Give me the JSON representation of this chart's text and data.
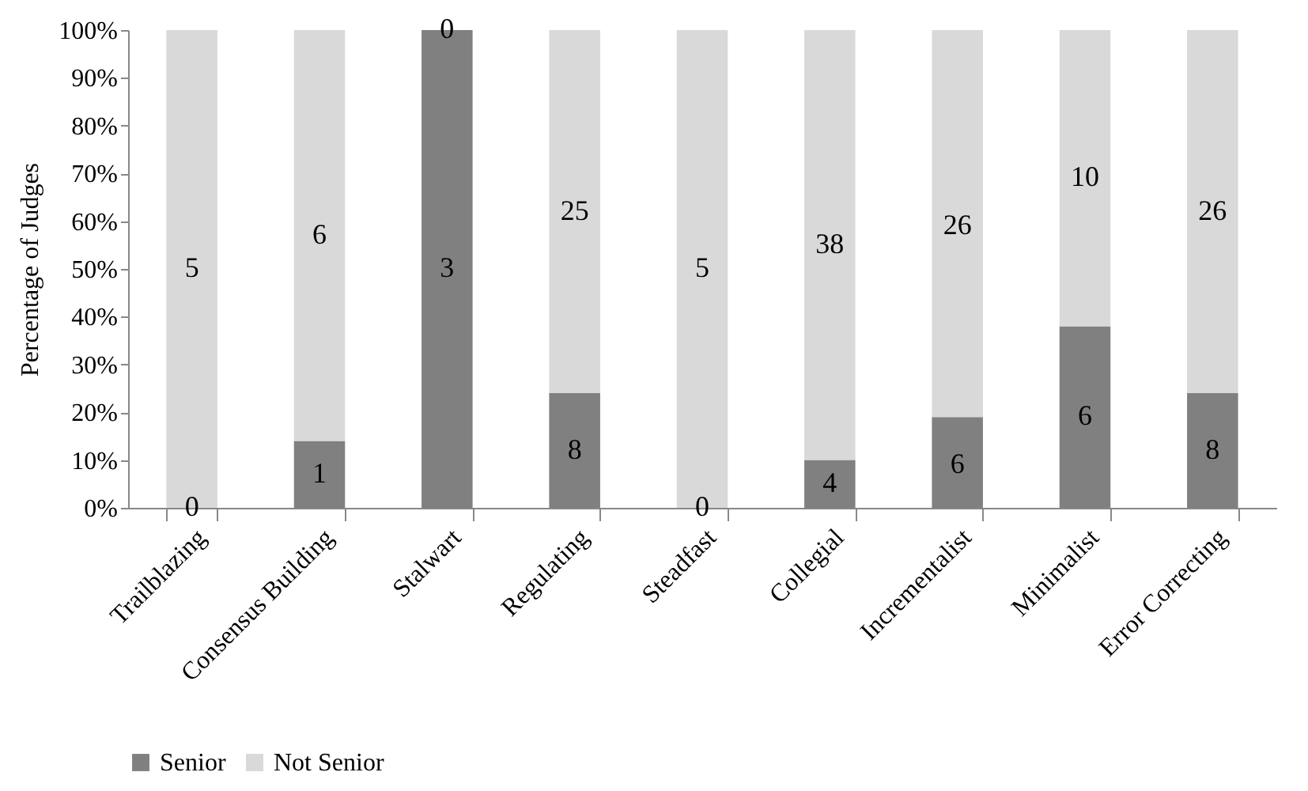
{
  "chart_data": {
    "type": "bar",
    "stacked": true,
    "ylabel": "Percentage of Judges",
    "categories": [
      "Trailblazing",
      "Consensus Building",
      "Stalwart",
      "Regulating",
      "Steadfast",
      "Collegial",
      "Incrementalist",
      "Minimalist",
      "Error Correcting"
    ],
    "series": [
      {
        "name": "Senior",
        "color": "#808080",
        "values": [
          0,
          14,
          100,
          24,
          0,
          10,
          19,
          38,
          24
        ]
      },
      {
        "name": "Not Senior",
        "color": "#d9d9d9",
        "values": [
          100,
          86,
          0,
          76,
          100,
          90,
          81,
          62,
          76
        ]
      }
    ],
    "annotations": [
      {
        "text": "0",
        "x": "Trailblazing",
        "y": 0
      },
      {
        "text": "5",
        "x": "Trailblazing",
        "y": 50
      },
      {
        "text": "1",
        "x": "Consensus Building",
        "y": 7
      },
      {
        "text": "6",
        "x": "Consensus Building",
        "y": 57
      },
      {
        "text": "3",
        "x": "Stalwart",
        "y": 50
      },
      {
        "text": "0",
        "x": "Stalwart",
        "y": 100
      },
      {
        "text": "8",
        "x": "Regulating",
        "y": 12
      },
      {
        "text": "25",
        "x": "Regulating",
        "y": 62
      },
      {
        "text": "0",
        "x": "Steadfast",
        "y": 0
      },
      {
        "text": "5",
        "x": "Steadfast",
        "y": 50
      },
      {
        "text": "4",
        "x": "Collegial",
        "y": 5
      },
      {
        "text": "38",
        "x": "Collegial",
        "y": 55
      },
      {
        "text": "6",
        "x": "Incrementalist",
        "y": 9
      },
      {
        "text": "26",
        "x": "Incrementalist",
        "y": 59
      },
      {
        "text": "6",
        "x": "Minimalist",
        "y": 19
      },
      {
        "text": "10",
        "x": "Minimalist",
        "y": 69
      },
      {
        "text": "8",
        "x": "Error Correcting",
        "y": 12
      },
      {
        "text": "26",
        "x": "Error Correcting",
        "y": 62
      }
    ],
    "ylim": [
      0,
      100
    ],
    "yticks": [
      {
        "value": 0,
        "label": "0%"
      },
      {
        "value": 10,
        "label": "10%"
      },
      {
        "value": 20,
        "label": "20%"
      },
      {
        "value": 30,
        "label": "30%"
      },
      {
        "value": 40,
        "label": "40%"
      },
      {
        "value": 50,
        "label": "50%"
      },
      {
        "value": 60,
        "label": "60%"
      },
      {
        "value": 70,
        "label": "70%"
      },
      {
        "value": 80,
        "label": "80%"
      },
      {
        "value": 90,
        "label": "90%"
      },
      {
        "value": 100,
        "label": "100%"
      }
    ],
    "grid": false,
    "legend": "bottom"
  }
}
